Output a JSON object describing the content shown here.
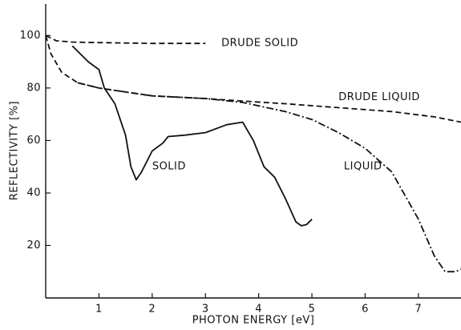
{
  "chart_data": {
    "type": "line",
    "xlabel": "PHOTON ENERGY [eV]",
    "ylabel": "REFLECTIVITY [%]",
    "xlim": [
      0,
      7.8
    ],
    "ylim": [
      0,
      112
    ],
    "xticks": [
      1,
      2,
      3,
      4,
      5,
      6,
      7
    ],
    "yticks": [
      20,
      40,
      60,
      80,
      100
    ],
    "grid": false,
    "series": [
      {
        "name": "DRUDE SOLID",
        "color": "#111111",
        "line_style": "dashed",
        "x": [
          0,
          0.2,
          0.5,
          1,
          2,
          3
        ],
        "values": [
          100,
          98,
          97.5,
          97.3,
          97,
          97
        ],
        "label_at": [
          3.3,
          97
        ]
      },
      {
        "name": "DRUDE LIQUID",
        "color": "#111111",
        "line_style": "dashed",
        "x": [
          0,
          0.1,
          0.3,
          0.6,
          1,
          2,
          3,
          3.7,
          4.5,
          5.5,
          6.5,
          7.3,
          7.8
        ],
        "values": [
          100,
          93,
          86,
          82,
          80,
          77,
          76,
          75,
          74,
          72.5,
          71,
          69,
          67
        ],
        "label_at": [
          5.5,
          76.5
        ]
      },
      {
        "name": "SOLID",
        "color": "#111111",
        "line_style": "solid",
        "x": [
          0.5,
          0.8,
          1,
          1.1,
          1.3,
          1.5,
          1.6,
          1.7,
          1.8,
          2,
          2.2,
          2.3,
          2.6,
          3,
          3.4,
          3.7,
          3.9,
          4.1,
          4.3,
          4.5,
          4.7,
          4.8,
          4.9,
          5
        ],
        "values": [
          96,
          90,
          87,
          80,
          74,
          62,
          50,
          45,
          48,
          56,
          59,
          61.5,
          62,
          63,
          66,
          67,
          60,
          50,
          46,
          38,
          29,
          27.5,
          28,
          30
        ],
        "label_at": [
          2.0,
          50
        ]
      },
      {
        "name": "LIQUID",
        "color": "#111111",
        "line_style": "dashdot",
        "x": [
          0.6,
          1,
          2,
          3,
          3.7,
          4.5,
          5,
          5.5,
          6,
          6.5,
          7,
          7.3,
          7.5,
          7.7,
          7.8
        ],
        "values": [
          82,
          80,
          77,
          76,
          74.5,
          71,
          68,
          63,
          57,
          48,
          30,
          16,
          10,
          10,
          11
        ],
        "label_at": [
          5.6,
          50
        ]
      }
    ]
  }
}
